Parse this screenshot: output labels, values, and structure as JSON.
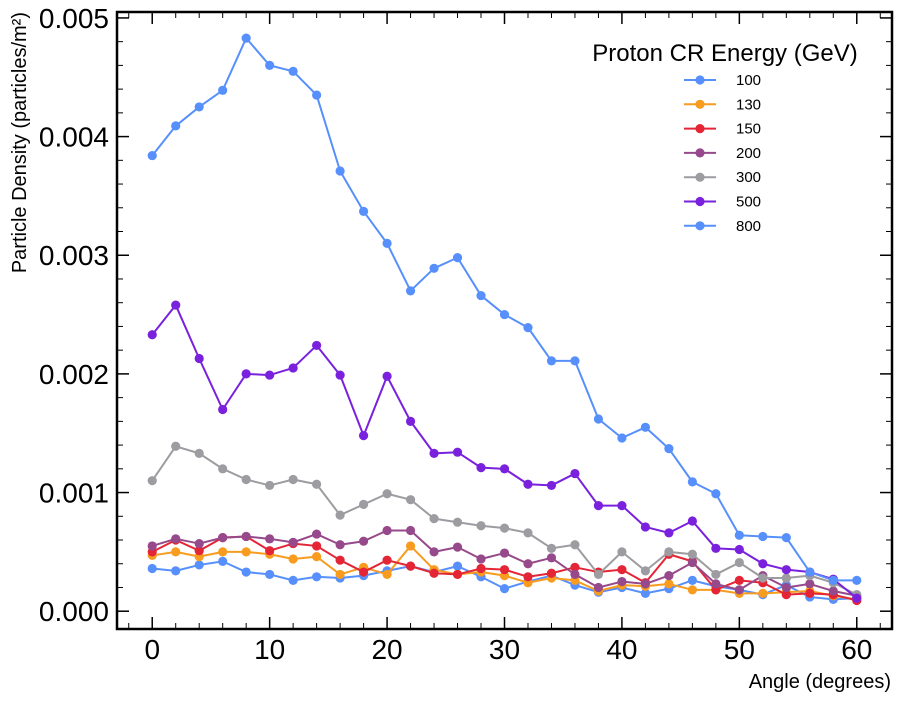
{
  "chart_data": {
    "type": "line",
    "title": "",
    "xlabel": "Angle (degrees)",
    "ylabel": "Particle Density (particles/m²)",
    "xlim": [
      -3,
      63
    ],
    "ylim": [
      -0.00015,
      0.00505
    ],
    "xticks": [
      0,
      10,
      20,
      30,
      40,
      50,
      60
    ],
    "xtick_labels": [
      "0",
      "10",
      "20",
      "30",
      "40",
      "50",
      "60"
    ],
    "yticks": [
      0.0,
      0.001,
      0.002,
      0.003,
      0.004,
      0.005
    ],
    "ytick_labels": [
      "0.000",
      "0.001",
      "0.002",
      "0.003",
      "0.004",
      "0.005"
    ],
    "legend_title": "Proton CR Energy (GeV)",
    "legend_position": "top-right",
    "grid": false,
    "x": [
      0,
      2,
      4,
      6,
      8,
      10,
      12,
      14,
      16,
      18,
      20,
      22,
      24,
      26,
      28,
      30,
      32,
      34,
      36,
      38,
      40,
      42,
      44,
      46,
      48,
      50,
      52,
      54,
      56,
      58,
      60
    ],
    "series": [
      {
        "name": "100",
        "color": "#5790fc",
        "values": [
          0.00036,
          0.00034,
          0.00039,
          0.00042,
          0.00033,
          0.00031,
          0.00026,
          0.00029,
          0.00028,
          0.0003,
          0.00034,
          0.00038,
          0.00033,
          0.00038,
          0.00029,
          0.00019,
          0.00025,
          0.0003,
          0.00022,
          0.00016,
          0.0002,
          0.00015,
          0.00019,
          0.00026,
          0.00021,
          0.00018,
          0.00014,
          0.00022,
          0.00012,
          0.0001,
          0.00011
        ]
      },
      {
        "name": "130",
        "color": "#f89c20",
        "values": [
          0.00047,
          0.0005,
          0.00046,
          0.0005,
          0.0005,
          0.00048,
          0.00044,
          0.00046,
          0.00031,
          0.00037,
          0.00031,
          0.00055,
          0.00035,
          0.00031,
          0.00033,
          0.0003,
          0.00024,
          0.00028,
          0.00026,
          0.00017,
          0.00022,
          0.00021,
          0.00023,
          0.00018,
          0.00018,
          0.00015,
          0.00015,
          0.00016,
          0.00017,
          0.00013,
          0.0001
        ]
      },
      {
        "name": "150",
        "color": "#e42536",
        "values": [
          0.0005,
          0.0006,
          0.00051,
          0.00062,
          0.00063,
          0.00051,
          0.00057,
          0.00055,
          0.00043,
          0.00033,
          0.00043,
          0.00038,
          0.00032,
          0.00031,
          0.00036,
          0.00035,
          0.00029,
          0.00032,
          0.00037,
          0.00033,
          0.00035,
          0.00024,
          0.00048,
          0.00042,
          0.00018,
          0.00026,
          0.00024,
          0.00014,
          0.00015,
          0.00014,
          9e-05
        ]
      },
      {
        "name": "200",
        "color": "#964a8b",
        "values": [
          0.00055,
          0.00061,
          0.00057,
          0.00062,
          0.00063,
          0.00061,
          0.00058,
          0.00065,
          0.00056,
          0.00059,
          0.00068,
          0.00068,
          0.0005,
          0.00054,
          0.00044,
          0.00049,
          0.0004,
          0.00045,
          0.00031,
          0.0002,
          0.00025,
          0.00023,
          0.0003,
          0.00041,
          0.00023,
          0.00018,
          0.0003,
          0.0002,
          0.00023,
          0.00017,
          0.00013
        ]
      },
      {
        "name": "300",
        "color": "#9c9ca1",
        "values": [
          0.0011,
          0.00139,
          0.00133,
          0.0012,
          0.00111,
          0.00106,
          0.00111,
          0.00107,
          0.00081,
          0.0009,
          0.00099,
          0.00094,
          0.00078,
          0.00075,
          0.00072,
          0.0007,
          0.00066,
          0.00053,
          0.00056,
          0.00031,
          0.0005,
          0.00034,
          0.0005,
          0.00048,
          0.00031,
          0.00041,
          0.00028,
          0.00028,
          0.0003,
          0.00024,
          0.00014
        ]
      },
      {
        "name": "500",
        "color": "#7a21dd",
        "values": [
          0.00233,
          0.00258,
          0.00213,
          0.0017,
          0.002,
          0.00199,
          0.00205,
          0.00224,
          0.00199,
          0.00148,
          0.00198,
          0.0016,
          0.00133,
          0.00134,
          0.00121,
          0.0012,
          0.00107,
          0.00106,
          0.00116,
          0.00089,
          0.00089,
          0.00071,
          0.00066,
          0.00076,
          0.00053,
          0.00052,
          0.0004,
          0.00035,
          0.00033,
          0.00027,
          0.00011
        ]
      },
      {
        "name": "800",
        "color": "#5790fc",
        "values": [
          0.00384,
          0.00409,
          0.00425,
          0.00439,
          0.00483,
          0.0046,
          0.00455,
          0.00435,
          0.00371,
          0.00337,
          0.0031,
          0.0027,
          0.00289,
          0.00298,
          0.00266,
          0.0025,
          0.00239,
          0.00211,
          0.00211,
          0.00162,
          0.00146,
          0.00155,
          0.00137,
          0.00109,
          0.00099,
          0.00064,
          0.00063,
          0.00062,
          0.00033,
          0.00026,
          0.00026
        ]
      }
    ]
  }
}
